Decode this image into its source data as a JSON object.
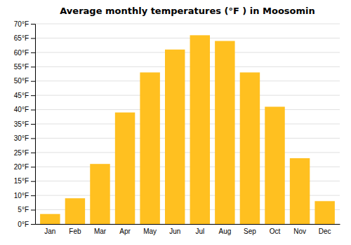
{
  "chart_data": {
    "type": "bar",
    "title": "Average monthly temperatures (°F ) in Moosomin",
    "categories": [
      "Jan",
      "Feb",
      "Mar",
      "Apr",
      "May",
      "Jun",
      "Jul",
      "Aug",
      "Sep",
      "Oct",
      "Nov",
      "Dec"
    ],
    "values": [
      3.5,
      9.0,
      21.0,
      39.0,
      53.0,
      61.0,
      66.0,
      64.0,
      53.0,
      41.0,
      23.0,
      8.0
    ],
    "color": "#FFC020",
    "ylim": [
      0,
      70
    ],
    "yticks": [
      {
        "value": 0,
        "label": "0°F"
      },
      {
        "value": 5,
        "label": "5°F"
      },
      {
        "value": 10,
        "label": "10°F"
      },
      {
        "value": 15,
        "label": "15°F"
      },
      {
        "value": 20,
        "label": "20°F"
      },
      {
        "value": 25,
        "label": "25°F"
      },
      {
        "value": 30,
        "label": "30°F"
      },
      {
        "value": 35,
        "label": "35°F"
      },
      {
        "value": 40,
        "label": "40°F"
      },
      {
        "value": 45,
        "label": "45°F"
      },
      {
        "value": 50,
        "label": "50°F"
      },
      {
        "value": 55,
        "label": "55°F"
      },
      {
        "value": 60,
        "label": "60°F"
      },
      {
        "value": 65,
        "label": "65°F"
      },
      {
        "value": 70,
        "label": "70°F"
      }
    ],
    "grid": true
  }
}
